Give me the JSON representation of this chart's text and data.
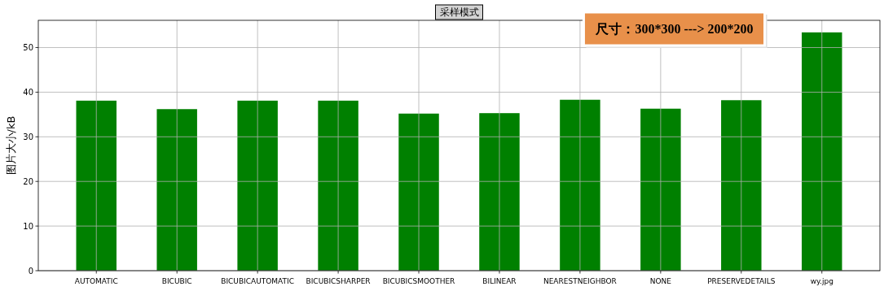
{
  "chart_data": {
    "type": "bar",
    "title": "采样模式",
    "ylabel": "图片大小/kB",
    "categories": [
      "AUTOMATIC",
      "BICUBIC",
      "BICUBICAUTOMATIC",
      "BICUBICSHARPER",
      "BICUBICSMOOTHER",
      "BILINEAR",
      "NEARESTNEIGHBOR",
      "NONE",
      "PRESERVEDETAILS",
      "wy.jpg"
    ],
    "values": [
      38.1,
      36.2,
      38.1,
      38.1,
      35.2,
      35.3,
      38.3,
      36.3,
      38.2,
      53.4
    ],
    "color": "#008000",
    "ylim": [
      0,
      56.1
    ],
    "yticks": [
      0,
      10,
      20,
      30,
      40,
      50
    ],
    "grid": true,
    "annotations": [
      "尺寸：300*300 ---> 200*200"
    ]
  }
}
